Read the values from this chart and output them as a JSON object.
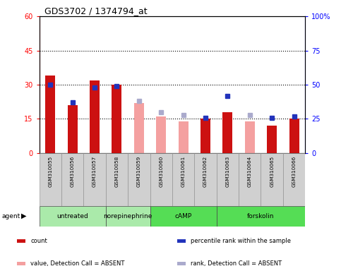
{
  "title": "GDS3702 / 1374794_at",
  "samples": [
    "GSM310055",
    "GSM310056",
    "GSM310057",
    "GSM310058",
    "GSM310059",
    "GSM310060",
    "GSM310061",
    "GSM310062",
    "GSM310063",
    "GSM310064",
    "GSM310065",
    "GSM310066"
  ],
  "red_bars": [
    34,
    21,
    32,
    30,
    null,
    null,
    null,
    15,
    18,
    null,
    12,
    15
  ],
  "pink_bars": [
    null,
    null,
    null,
    null,
    22,
    16,
    14,
    null,
    null,
    14,
    null,
    null
  ],
  "blue_squares_pct": [
    50,
    37,
    48,
    49,
    null,
    null,
    null,
    26,
    42,
    null,
    26,
    27
  ],
  "lavender_squares_pct": [
    null,
    null,
    null,
    null,
    38,
    30,
    28,
    null,
    null,
    28,
    null,
    null
  ],
  "ylim_left": [
    0,
    60
  ],
  "ylim_right": [
    0,
    100
  ],
  "yticks_left": [
    0,
    15,
    30,
    45,
    60
  ],
  "yticks_right": [
    0,
    25,
    50,
    75,
    100
  ],
  "groups": [
    {
      "label": "untreated",
      "start": 0,
      "end": 3,
      "color": "#aaeaaa"
    },
    {
      "label": "norepinephrine",
      "start": 3,
      "end": 5,
      "color": "#aaeaaa"
    },
    {
      "label": "cAMP",
      "start": 5,
      "end": 8,
      "color": "#55dd55"
    },
    {
      "label": "forskolin",
      "start": 8,
      "end": 12,
      "color": "#55dd55"
    }
  ],
  "agent_label": "agent",
  "red_color": "#cc1111",
  "pink_color": "#f4a0a0",
  "blue_color": "#2233bb",
  "lavender_color": "#aaaacc",
  "grey_box": "#d0d0d0",
  "legend_items": [
    {
      "color": "#cc1111",
      "label": "count"
    },
    {
      "color": "#2233bb",
      "label": "percentile rank within the sample"
    },
    {
      "color": "#f4a0a0",
      "label": "value, Detection Call = ABSENT"
    },
    {
      "color": "#aaaacc",
      "label": "rank, Detection Call = ABSENT"
    }
  ]
}
